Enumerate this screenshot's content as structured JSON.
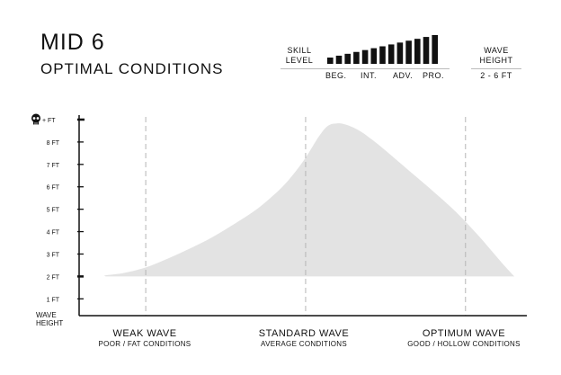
{
  "header": {
    "title": "MID 6",
    "subtitle": "OPTIMAL CONDITIONS",
    "skill_label_line1": "SKILL",
    "skill_label_line2": "LEVEL",
    "skill_ticks": [
      "BEG.",
      "INT.",
      "ADV.",
      "PRO."
    ],
    "wave_height_label_line1": "WAVE",
    "wave_height_label_line2": "HEIGHT",
    "wave_height_value": "2 - 6 FT"
  },
  "skill_bars": {
    "count": 13,
    "color": "#111111"
  },
  "chart_data": {
    "type": "area",
    "ylabel_line1": "WAVE",
    "ylabel_line2": "HEIGHT",
    "y_ticks": [
      "1 FT",
      "2 FT",
      "3 FT",
      "4 FT",
      "5 FT",
      "6 FT",
      "7 FT",
      "8 FT",
      "+ FT"
    ],
    "y_tick_values": [
      1,
      2,
      3,
      4,
      5,
      6,
      7,
      8,
      9
    ],
    "top_tick_icon": "skull-icon",
    "ylim": [
      0.25,
      9.2
    ],
    "xlim": [
      0,
      100
    ],
    "categories": [
      {
        "label": "WEAK WAVE",
        "sub": "POOR / FAT CONDITIONS",
        "x": 15
      },
      {
        "label": "STANDARD WAVE",
        "sub": "AVERAGE CONDITIONS",
        "x": 51
      },
      {
        "label": "OPTIMUM WAVE",
        "sub": "GOOD / HOLLOW CONDITIONS",
        "x": 87
      }
    ],
    "series": [
      {
        "color": "#e3e3e3",
        "baseline": 2,
        "x": [
          6,
          10,
          15,
          20,
          25,
          30,
          35,
          40,
          45,
          48,
          51,
          54,
          56,
          58,
          60,
          63,
          66,
          70,
          75,
          80,
          85,
          90,
          95,
          98
        ],
        "y": [
          2.05,
          2.15,
          2.4,
          2.8,
          3.25,
          3.75,
          4.35,
          5.0,
          5.85,
          6.5,
          7.3,
          8.25,
          8.72,
          8.83,
          8.78,
          8.52,
          8.1,
          7.45,
          6.6,
          5.75,
          4.85,
          3.8,
          2.65,
          2.0
        ]
      }
    ]
  }
}
